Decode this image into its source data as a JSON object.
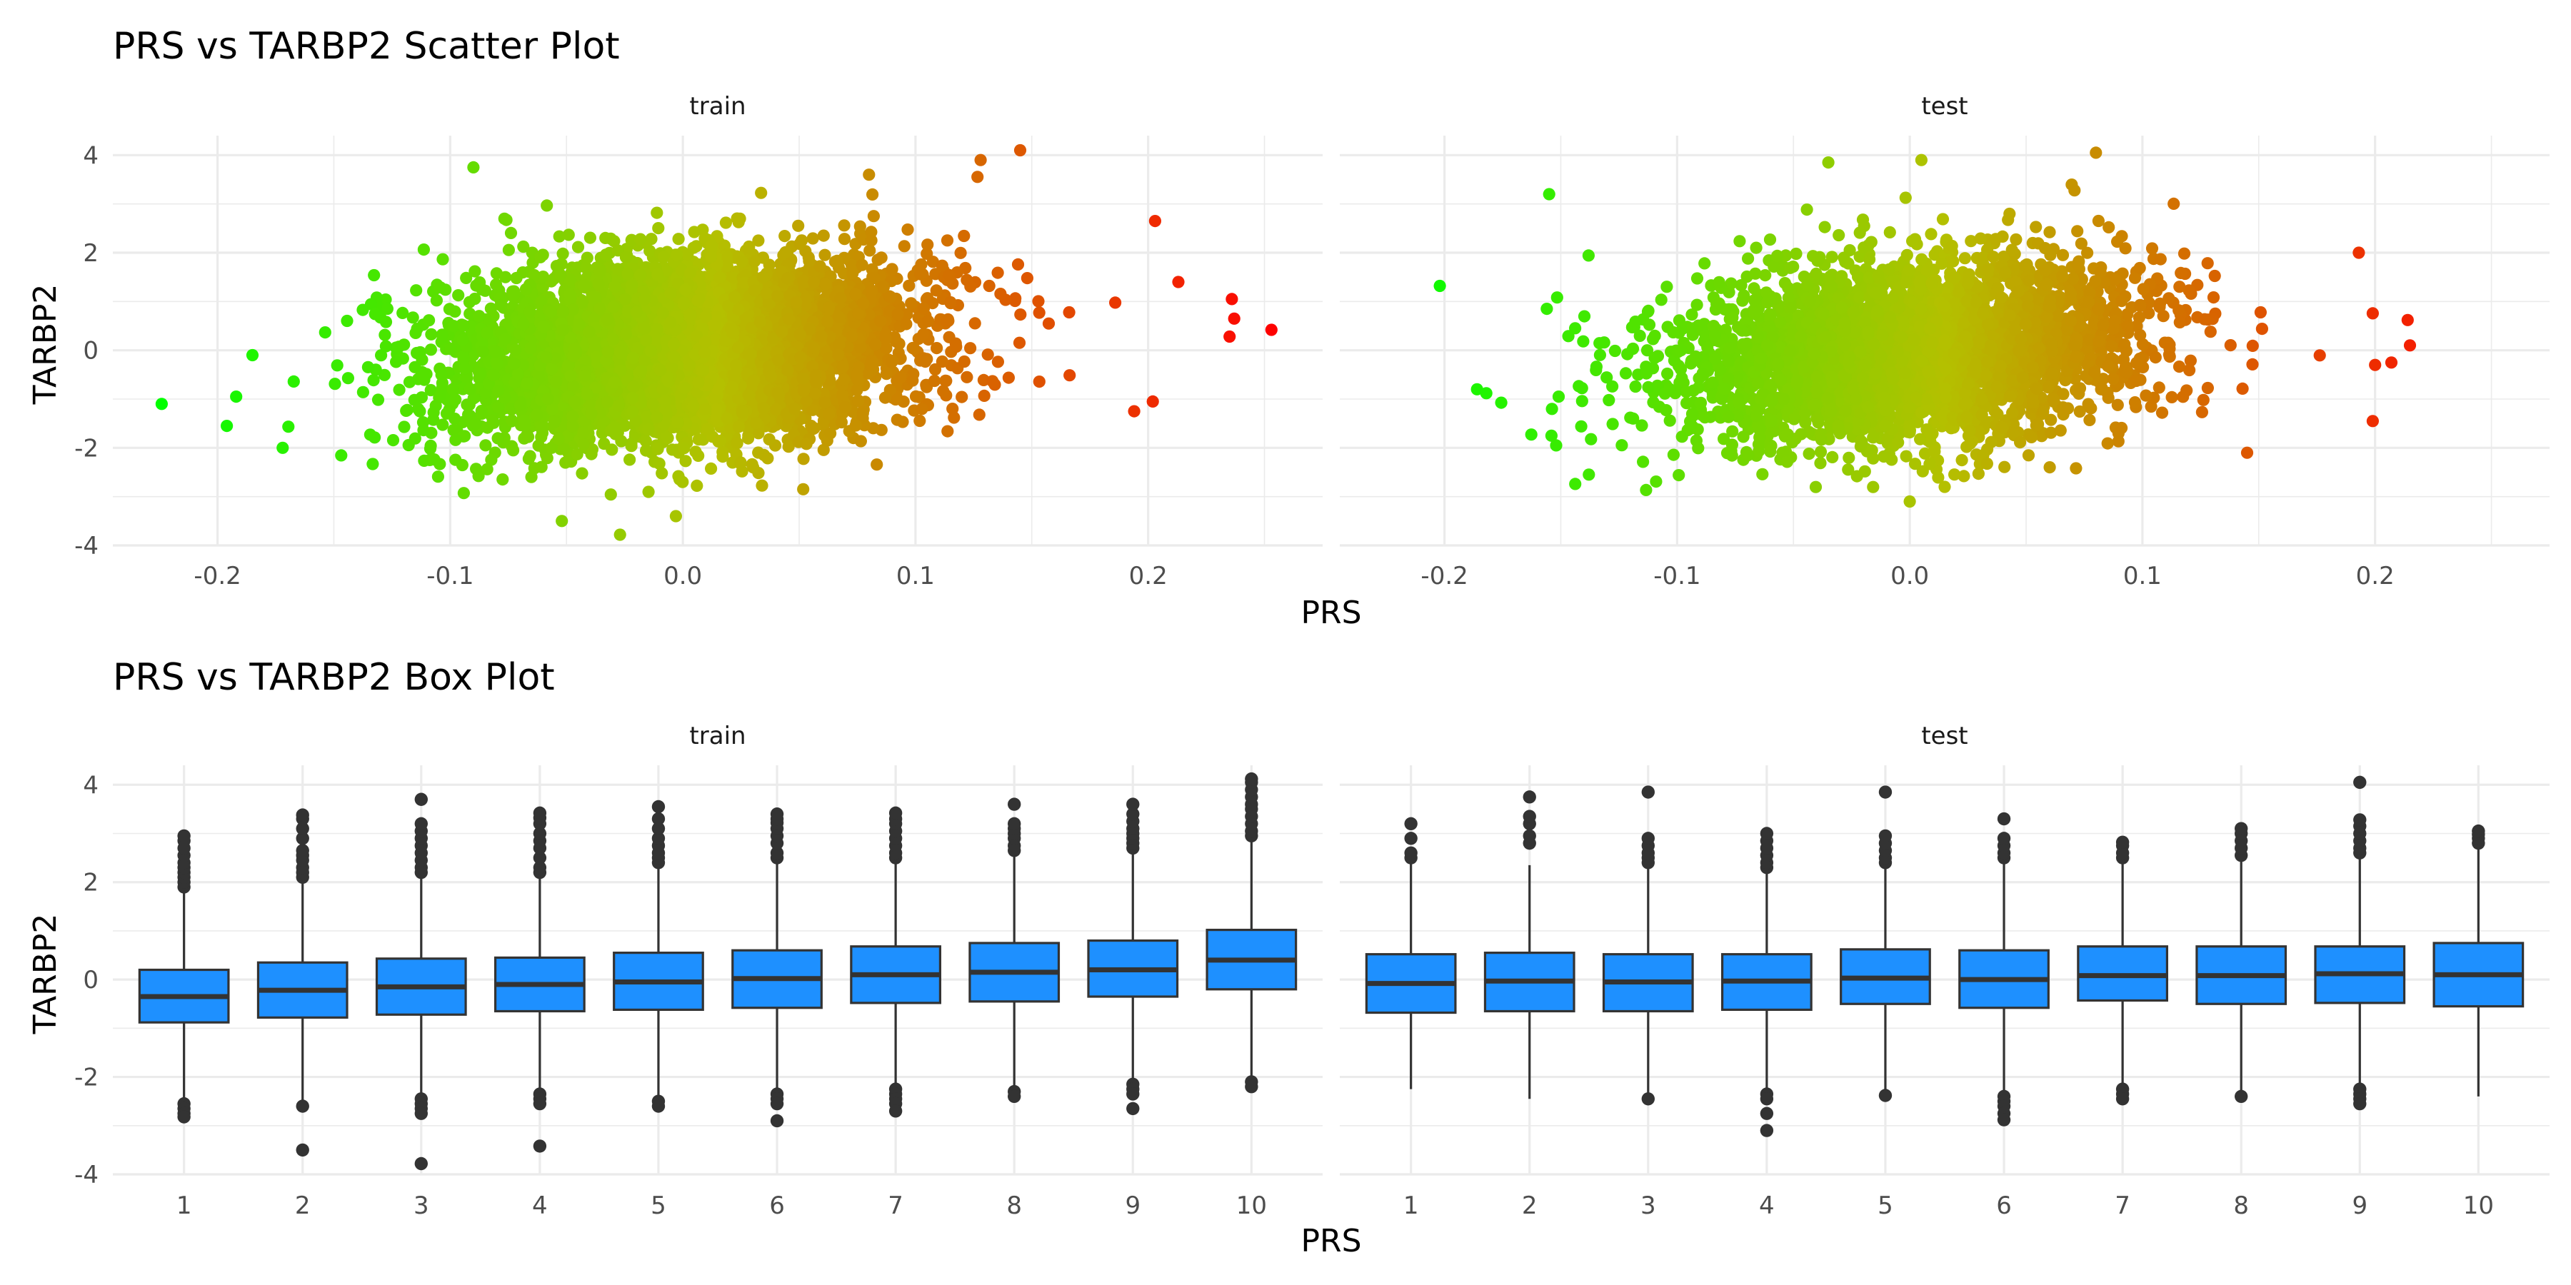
{
  "colors": {
    "low": "#00ff00",
    "mid": "#b4c000",
    "high": "#ff0000",
    "box_fill": "#1e90ff",
    "box_line": "#333333",
    "grid": "#ebebeb"
  },
  "scatter": {
    "title": "PRS vs TARBP2 Scatter Plot",
    "xlabel": "PRS",
    "ylabel": "TARBP2"
  },
  "box": {
    "title": "PRS vs TARBP2 Box Plot",
    "xlabel": "PRS",
    "ylabel": "TARBP2"
  },
  "chart_data": [
    {
      "type": "scatter",
      "title": "PRS vs TARBP2 Scatter Plot",
      "xlabel": "PRS",
      "ylabel": "TARBP2",
      "xlim": [
        -0.245,
        0.275
      ],
      "ylim": [
        -4.0,
        4.4
      ],
      "x_ticks": [
        "-0.2",
        "-0.1",
        "0.0",
        "0.1",
        "0.2"
      ],
      "y_ticks": [
        "-4",
        "-2",
        "0",
        "2",
        "4"
      ],
      "color_scale": {
        "variable": "PRS",
        "low": "#00ff00",
        "mid": "#b4c000",
        "high": "#ff0000"
      },
      "legend": "none",
      "grid": true,
      "panels": [
        {
          "name": "train",
          "x_mean": 0.0,
          "x_sd": 0.05,
          "y_mean": 0.0,
          "y_sd": 1.0,
          "points": [
            [
              -0.224,
              -1.1
            ],
            [
              -0.196,
              -1.55
            ],
            [
              -0.192,
              -0.95
            ],
            [
              -0.185,
              -0.1
            ],
            [
              -0.172,
              -2.0
            ],
            [
              -0.052,
              -3.5
            ],
            [
              -0.027,
              -3.78
            ],
            [
              -0.003,
              -3.4
            ],
            [
              0.145,
              4.1
            ],
            [
              0.128,
              3.9
            ],
            [
              0.203,
              2.65
            ],
            [
              0.202,
              -1.05
            ],
            [
              0.236,
              1.05
            ],
            [
              0.237,
              0.65
            ],
            [
              0.235,
              0.28
            ],
            [
              0.253,
              0.42
            ],
            [
              0.213,
              1.4
            ],
            [
              0.194,
              -1.25
            ],
            [
              -0.09,
              3.75
            ],
            [
              0.08,
              3.6
            ]
          ]
        },
        {
          "name": "test",
          "x_mean": 0.0,
          "x_sd": 0.05,
          "y_mean": 0.0,
          "y_sd": 1.0,
          "points": [
            [
              -0.202,
              1.32
            ],
            [
              -0.186,
              -0.8
            ],
            [
              -0.182,
              -0.88
            ],
            [
              -0.155,
              3.2
            ],
            [
              -0.156,
              0.85
            ],
            [
              -0.154,
              -1.75
            ],
            [
              -0.152,
              -1.95
            ],
            [
              -0.035,
              3.85
            ],
            [
              0.005,
              3.9
            ],
            [
              0.08,
              4.05
            ],
            [
              -0.0,
              -3.1
            ],
            [
              0.015,
              -2.8
            ],
            [
              0.193,
              2.0
            ],
            [
              0.2,
              -0.3
            ],
            [
              0.207,
              -0.25
            ],
            [
              0.199,
              -1.45
            ],
            [
              0.214,
              0.62
            ],
            [
              0.215,
              0.1
            ],
            [
              0.145,
              -2.1
            ]
          ]
        }
      ]
    },
    {
      "type": "box",
      "title": "PRS vs TARBP2 Box Plot",
      "xlabel": "PRS",
      "ylabel": "TARBP2",
      "categories": [
        "1",
        "2",
        "3",
        "4",
        "5",
        "6",
        "7",
        "8",
        "9",
        "10"
      ],
      "ylim": [
        -4.0,
        4.4
      ],
      "y_ticks": [
        "-4",
        "-2",
        "0",
        "2",
        "4"
      ],
      "grid": true,
      "panels": [
        {
          "name": "train",
          "boxes": [
            {
              "q1": -0.88,
              "median": -0.35,
              "q3": 0.2,
              "whisker_low": -2.5,
              "whisker_high": 1.8,
              "outliers": [
                1.9,
                2.0,
                2.1,
                2.2,
                2.3,
                2.4,
                2.55,
                2.7,
                2.85,
                2.95,
                -2.55,
                -2.65,
                -2.75,
                -2.82
              ]
            },
            {
              "q1": -0.78,
              "median": -0.22,
              "q3": 0.35,
              "whisker_low": -2.55,
              "whisker_high": 2.0,
              "outliers": [
                2.1,
                2.2,
                2.3,
                2.45,
                2.55,
                2.65,
                2.9,
                3.1,
                3.3,
                3.38,
                -2.6,
                -3.5
              ]
            },
            {
              "q1": -0.72,
              "median": -0.15,
              "q3": 0.43,
              "whisker_low": -2.4,
              "whisker_high": 2.1,
              "outliers": [
                2.2,
                2.3,
                2.45,
                2.6,
                2.75,
                2.9,
                3.05,
                3.2,
                3.7,
                -2.45,
                -2.55,
                -2.65,
                -2.75,
                -3.78
              ]
            },
            {
              "q1": -0.65,
              "median": -0.1,
              "q3": 0.45,
              "whisker_low": -2.3,
              "whisker_high": 2.1,
              "outliers": [
                2.2,
                2.3,
                2.5,
                2.7,
                2.85,
                3.0,
                3.2,
                3.32,
                3.42,
                -2.35,
                -2.45,
                -2.55,
                -3.42
              ]
            },
            {
              "q1": -0.62,
              "median": -0.05,
              "q3": 0.55,
              "whisker_low": -2.4,
              "whisker_high": 2.3,
              "outliers": [
                2.4,
                2.5,
                2.6,
                2.75,
                2.9,
                3.1,
                3.3,
                3.55,
                -2.5,
                -2.6
              ]
            },
            {
              "q1": -0.58,
              "median": 0.02,
              "q3": 0.6,
              "whisker_low": -2.3,
              "whisker_high": 2.4,
              "outliers": [
                2.5,
                2.6,
                2.8,
                2.95,
                3.1,
                3.22,
                3.3,
                3.4,
                -2.35,
                -2.45,
                -2.55,
                -2.9
              ]
            },
            {
              "q1": -0.48,
              "median": 0.1,
              "q3": 0.68,
              "whisker_low": -2.2,
              "whisker_high": 2.4,
              "outliers": [
                2.5,
                2.6,
                2.75,
                2.9,
                3.05,
                3.2,
                3.3,
                3.42,
                -2.25,
                -2.35,
                -2.45,
                -2.55,
                -2.7
              ]
            },
            {
              "q1": -0.45,
              "median": 0.15,
              "q3": 0.75,
              "whisker_low": -2.25,
              "whisker_high": 2.55,
              "outliers": [
                2.65,
                2.75,
                2.9,
                3.0,
                3.1,
                3.2,
                3.6,
                -2.3,
                -2.4
              ]
            },
            {
              "q1": -0.35,
              "median": 0.2,
              "q3": 0.8,
              "whisker_low": -2.1,
              "whisker_high": 2.6,
              "outliers": [
                2.7,
                2.8,
                2.9,
                3.0,
                3.1,
                3.25,
                3.4,
                3.6,
                -2.15,
                -2.25,
                -2.35,
                -2.65
              ]
            },
            {
              "q1": -0.2,
              "median": 0.4,
              "q3": 1.02,
              "whisker_low": -2.05,
              "whisker_high": 2.85,
              "outliers": [
                2.95,
                3.05,
                3.2,
                3.35,
                3.5,
                3.6,
                3.75,
                3.9,
                4.05,
                4.12,
                -2.1,
                -2.2
              ]
            }
          ]
        },
        {
          "name": "test",
          "boxes": [
            {
              "q1": -0.68,
              "median": -0.08,
              "q3": 0.52,
              "whisker_low": -2.25,
              "whisker_high": 2.4,
              "outliers": [
                2.5,
                2.6,
                2.9,
                3.2
              ]
            },
            {
              "q1": -0.65,
              "median": -0.03,
              "q3": 0.55,
              "whisker_low": -2.45,
              "whisker_high": 2.35,
              "outliers": [
                2.8,
                2.95,
                3.2,
                3.35,
                3.75
              ]
            },
            {
              "q1": -0.65,
              "median": -0.05,
              "q3": 0.52,
              "whisker_low": -2.35,
              "whisker_high": 2.3,
              "outliers": [
                2.4,
                2.5,
                2.6,
                2.75,
                2.9,
                3.85,
                -2.45
              ]
            },
            {
              "q1": -0.62,
              "median": -0.03,
              "q3": 0.52,
              "whisker_low": -2.3,
              "whisker_high": 2.2,
              "outliers": [
                2.3,
                2.4,
                2.55,
                2.7,
                2.85,
                3.0,
                -2.35,
                -2.45,
                -2.75,
                -3.1
              ]
            },
            {
              "q1": -0.5,
              "median": 0.03,
              "q3": 0.62,
              "whisker_low": -2.3,
              "whisker_high": 2.3,
              "outliers": [
                2.4,
                2.5,
                2.65,
                2.8,
                2.95,
                3.85,
                -2.38
              ]
            },
            {
              "q1": -0.58,
              "median": 0.0,
              "q3": 0.6,
              "whisker_low": -2.35,
              "whisker_high": 2.4,
              "outliers": [
                2.5,
                2.6,
                2.75,
                2.9,
                3.3,
                -2.4,
                -2.5,
                -2.6,
                -2.75,
                -2.88
              ]
            },
            {
              "q1": -0.43,
              "median": 0.08,
              "q3": 0.68,
              "whisker_low": -2.2,
              "whisker_high": 2.4,
              "outliers": [
                2.5,
                2.6,
                2.75,
                2.82,
                -2.25,
                -2.35,
                -2.45
              ]
            },
            {
              "q1": -0.5,
              "median": 0.08,
              "q3": 0.68,
              "whisker_low": -2.3,
              "whisker_high": 2.45,
              "outliers": [
                2.55,
                2.7,
                2.85,
                3.0,
                3.1,
                -2.4
              ]
            },
            {
              "q1": -0.48,
              "median": 0.12,
              "q3": 0.68,
              "whisker_low": -2.2,
              "whisker_high": 2.5,
              "outliers": [
                2.6,
                2.7,
                2.85,
                3.0,
                3.15,
                3.28,
                4.05,
                -2.25,
                -2.35,
                -2.45,
                -2.55
              ]
            },
            {
              "q1": -0.55,
              "median": 0.1,
              "q3": 0.75,
              "whisker_low": -2.4,
              "whisker_high": 2.7,
              "outliers": [
                2.8,
                2.9,
                2.98,
                3.05
              ]
            }
          ]
        }
      ]
    }
  ]
}
